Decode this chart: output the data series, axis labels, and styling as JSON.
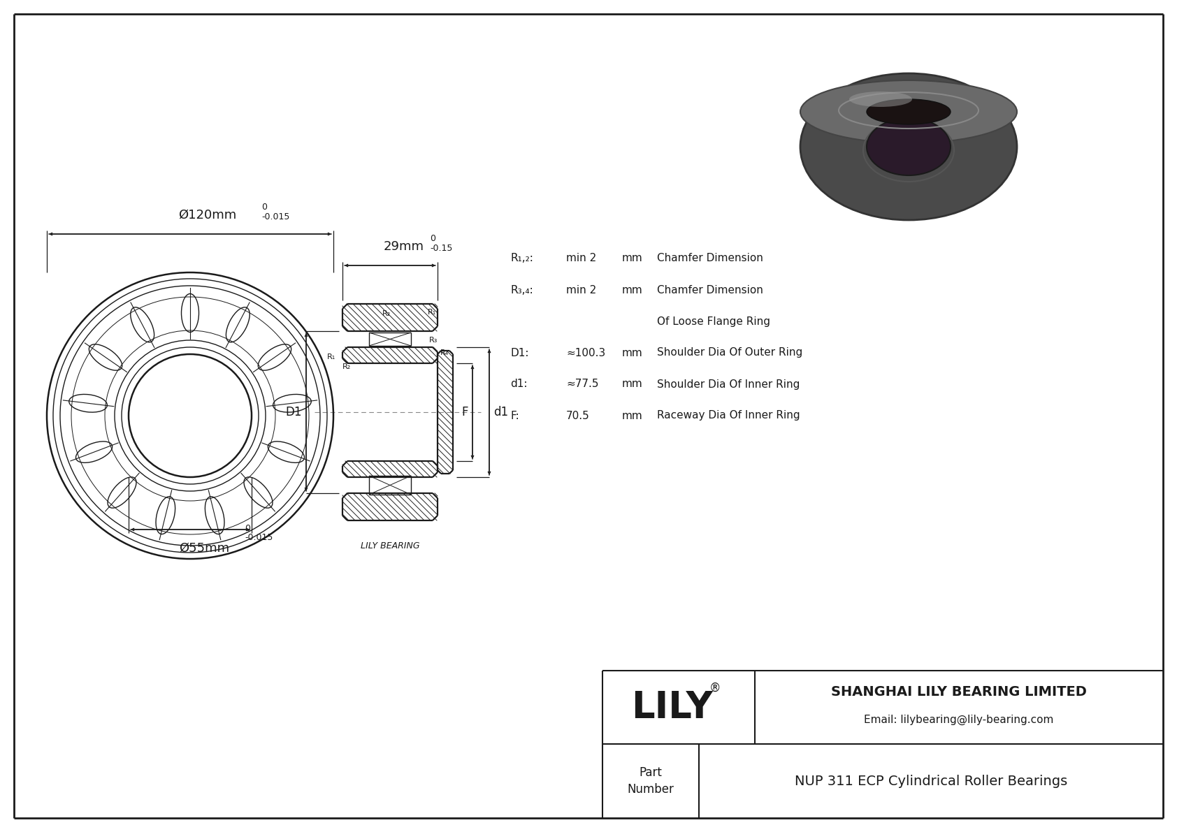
{
  "bg_color": "#ffffff",
  "line_color": "#1a1a1a",
  "dim_color": "#1a1a1a",
  "title": "NUP 311 ECP Cylindrical Roller Bearings",
  "company": "SHANGHAI LILY BEARING LIMITED",
  "email": "Email: lilybearing@lily-bearing.com",
  "lily_logo": "LILY",
  "part_label": "Part\nNumber",
  "specs": [
    {
      "label": "R₁,₂:",
      "value": "min 2",
      "unit": "mm",
      "desc": "Chamfer Dimension"
    },
    {
      "label": "R₃,₄:",
      "value": "min 2",
      "unit": "mm",
      "desc": "Chamfer Dimension"
    },
    {
      "label": "",
      "value": "",
      "unit": "",
      "desc": "Of Loose Flange Ring"
    },
    {
      "label": "D1:",
      "value": "≈100.3",
      "unit": "mm",
      "desc": "Shoulder Dia Of Outer Ring"
    },
    {
      "label": "d1:",
      "value": "≈77.5",
      "unit": "mm",
      "desc": "Shoulder Dia Of Inner Ring"
    },
    {
      "label": "F:",
      "value": "70.5",
      "unit": "mm",
      "desc": "Raceway Dia Of Inner Ring"
    }
  ],
  "lily_bearing_label": "LILY BEARING",
  "outer_dia_label": "Ø120mm",
  "outer_tol_top": "0",
  "outer_tol_bot": "-0.015",
  "inner_dia_label": "Ø55mm",
  "inner_tol_top": "0",
  "inner_tol_bot": "-0.015",
  "width_label": "29mm",
  "width_tol_top": "0",
  "width_tol_bot": "-0.15"
}
